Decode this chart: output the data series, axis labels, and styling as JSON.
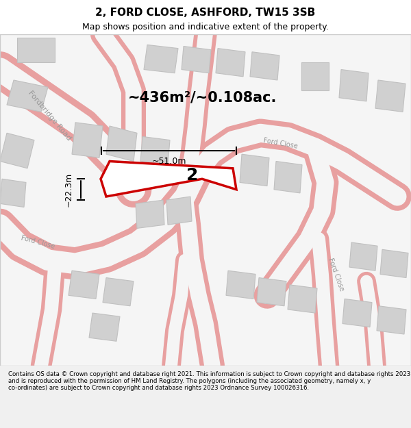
{
  "title": "2, FORD CLOSE, ASHFORD, TW15 3SB",
  "subtitle": "Map shows position and indicative extent of the property.",
  "footer": "Contains OS data © Crown copyright and database right 2021. This information is subject to Crown copyright and database rights 2023 and is reproduced with the permission of HM Land Registry. The polygons (including the associated geometry, namely x, y co-ordinates) are subject to Crown copyright and database rights 2023 Ordnance Survey 100026316.",
  "area_label": "~436m²/~0.108ac.",
  "width_label": "~51.0m",
  "height_label": "~22.3m",
  "number_label": "2",
  "bg_color": "#f5f5f5",
  "map_bg": "#ffffff",
  "road_color": "#e8a0a0",
  "building_color": "#d0d0d0",
  "building_outline": "#c0c0c0",
  "property_color": "#ffffff",
  "property_outline": "#cc0000",
  "street_label_color": "#a0a0a0",
  "figsize": [
    6.0,
    6.25
  ],
  "dpi": 100
}
